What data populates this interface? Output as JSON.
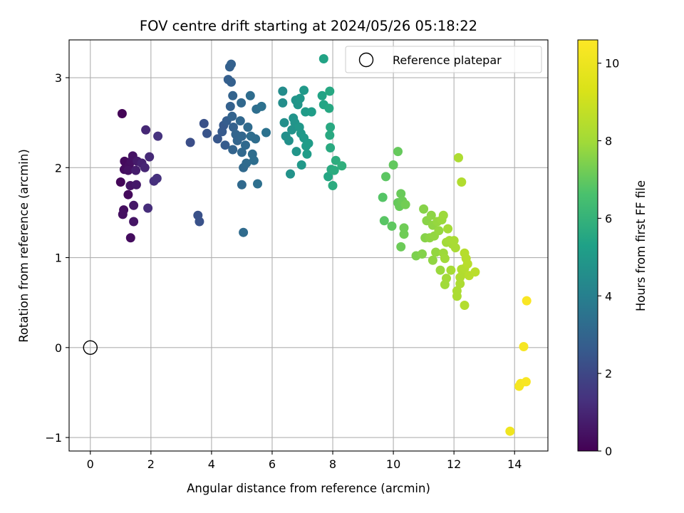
{
  "chart_data": {
    "type": "scatter",
    "title": "FOV centre drift starting at 2024/05/26 05:18:22",
    "xlabel": "Angular distance from reference (arcmin)",
    "ylabel": "Rotation from reference (arcmin)",
    "xlim": [
      -0.7,
      15.1
    ],
    "ylim": [
      -1.15,
      3.42
    ],
    "xticks": [
      0,
      2,
      4,
      6,
      8,
      10,
      12,
      14
    ],
    "yticks": [
      -1,
      0,
      1,
      2,
      3
    ],
    "grid": true,
    "colormap": "viridis",
    "colorbar": {
      "label": "Hours from first FF file",
      "range": [
        0,
        10.6
      ],
      "ticks": [
        0,
        2,
        4,
        6,
        8,
        10
      ]
    },
    "legend": {
      "position": "top-right",
      "entries": [
        "Reference platepar"
      ]
    },
    "reference_point": {
      "x": 0,
      "y": 0
    },
    "points": [
      {
        "x": 1.05,
        "y": 2.6,
        "c": 0.1
      },
      {
        "x": 1.0,
        "y": 1.84,
        "c": 0.15
      },
      {
        "x": 1.13,
        "y": 2.07,
        "c": 0.25
      },
      {
        "x": 1.12,
        "y": 1.98,
        "c": 0.3
      },
      {
        "x": 1.28,
        "y": 2.02,
        "c": 0.35
      },
      {
        "x": 1.35,
        "y": 2.07,
        "c": 0.4
      },
      {
        "x": 1.25,
        "y": 1.97,
        "c": 0.45
      },
      {
        "x": 1.4,
        "y": 2.13,
        "c": 0.5
      },
      {
        "x": 1.32,
        "y": 1.8,
        "c": 0.55
      },
      {
        "x": 1.25,
        "y": 1.7,
        "c": 0.25
      },
      {
        "x": 1.1,
        "y": 1.53,
        "c": 0.35
      },
      {
        "x": 1.07,
        "y": 1.48,
        "c": 0.4
      },
      {
        "x": 1.43,
        "y": 1.58,
        "c": 0.6
      },
      {
        "x": 1.43,
        "y": 1.4,
        "c": 0.55
      },
      {
        "x": 1.33,
        "y": 1.22,
        "c": 0.3
      },
      {
        "x": 1.52,
        "y": 1.81,
        "c": 0.65
      },
      {
        "x": 1.55,
        "y": 2.07,
        "c": 0.7
      },
      {
        "x": 1.5,
        "y": 1.97,
        "c": 0.75
      },
      {
        "x": 1.7,
        "y": 2.05,
        "c": 0.9
      },
      {
        "x": 1.8,
        "y": 2.0,
        "c": 1.0
      },
      {
        "x": 1.83,
        "y": 2.42,
        "c": 1.05
      },
      {
        "x": 1.95,
        "y": 2.12,
        "c": 1.1
      },
      {
        "x": 1.9,
        "y": 1.55,
        "c": 1.2
      },
      {
        "x": 2.1,
        "y": 1.85,
        "c": 1.25
      },
      {
        "x": 2.2,
        "y": 1.88,
        "c": 1.3
      },
      {
        "x": 2.23,
        "y": 2.35,
        "c": 1.35
      },
      {
        "x": 3.3,
        "y": 2.28,
        "c": 2.2
      },
      {
        "x": 3.55,
        "y": 1.47,
        "c": 2.3
      },
      {
        "x": 3.6,
        "y": 1.4,
        "c": 2.35
      },
      {
        "x": 3.75,
        "y": 2.49,
        "c": 2.3
      },
      {
        "x": 3.85,
        "y": 2.38,
        "c": 2.4
      },
      {
        "x": 4.2,
        "y": 2.32,
        "c": 2.5
      },
      {
        "x": 4.35,
        "y": 2.4,
        "c": 2.6
      },
      {
        "x": 4.4,
        "y": 2.47,
        "c": 2.55
      },
      {
        "x": 4.45,
        "y": 2.25,
        "c": 2.65
      },
      {
        "x": 4.5,
        "y": 2.52,
        "c": 2.7
      },
      {
        "x": 4.55,
        "y": 2.98,
        "c": 2.75
      },
      {
        "x": 4.6,
        "y": 3.12,
        "c": 2.8
      },
      {
        "x": 4.65,
        "y": 3.15,
        "c": 2.85
      },
      {
        "x": 4.65,
        "y": 2.95,
        "c": 2.8
      },
      {
        "x": 4.62,
        "y": 2.68,
        "c": 2.85
      },
      {
        "x": 4.7,
        "y": 2.8,
        "c": 2.9
      },
      {
        "x": 4.68,
        "y": 2.57,
        "c": 2.9
      },
      {
        "x": 4.7,
        "y": 2.2,
        "c": 2.95
      },
      {
        "x": 4.72,
        "y": 2.45,
        "c": 2.85
      },
      {
        "x": 4.8,
        "y": 2.37,
        "c": 3.0
      },
      {
        "x": 4.85,
        "y": 2.3,
        "c": 3.0
      },
      {
        "x": 4.95,
        "y": 2.52,
        "c": 3.05
      },
      {
        "x": 4.98,
        "y": 2.72,
        "c": 3.1
      },
      {
        "x": 5.0,
        "y": 2.35,
        "c": 3.05
      },
      {
        "x": 5.0,
        "y": 2.17,
        "c": 3.1
      },
      {
        "x": 5.0,
        "y": 1.81,
        "c": 3.15
      },
      {
        "x": 5.05,
        "y": 2.0,
        "c": 3.15
      },
      {
        "x": 5.05,
        "y": 1.28,
        "c": 3.2
      },
      {
        "x": 5.15,
        "y": 2.05,
        "c": 3.2
      },
      {
        "x": 5.12,
        "y": 2.25,
        "c": 3.15
      },
      {
        "x": 5.2,
        "y": 2.45,
        "c": 3.2
      },
      {
        "x": 5.28,
        "y": 2.8,
        "c": 3.25
      },
      {
        "x": 5.3,
        "y": 2.35,
        "c": 3.3
      },
      {
        "x": 5.35,
        "y": 2.15,
        "c": 3.3
      },
      {
        "x": 5.4,
        "y": 2.08,
        "c": 3.35
      },
      {
        "x": 5.45,
        "y": 2.32,
        "c": 3.3
      },
      {
        "x": 5.48,
        "y": 2.65,
        "c": 3.35
      },
      {
        "x": 5.52,
        "y": 1.82,
        "c": 3.4
      },
      {
        "x": 5.65,
        "y": 2.68,
        "c": 3.45
      },
      {
        "x": 5.8,
        "y": 2.39,
        "c": 3.5
      },
      {
        "x": 6.35,
        "y": 2.85,
        "c": 4.5
      },
      {
        "x": 6.35,
        "y": 2.72,
        "c": 4.55
      },
      {
        "x": 6.4,
        "y": 2.5,
        "c": 4.6
      },
      {
        "x": 6.45,
        "y": 2.35,
        "c": 4.6
      },
      {
        "x": 6.55,
        "y": 2.3,
        "c": 4.65
      },
      {
        "x": 6.6,
        "y": 1.93,
        "c": 4.7
      },
      {
        "x": 6.65,
        "y": 2.42,
        "c": 4.7
      },
      {
        "x": 6.7,
        "y": 2.55,
        "c": 4.75
      },
      {
        "x": 6.75,
        "y": 2.5,
        "c": 4.8
      },
      {
        "x": 6.78,
        "y": 2.75,
        "c": 4.8
      },
      {
        "x": 6.8,
        "y": 2.18,
        "c": 4.85
      },
      {
        "x": 6.85,
        "y": 2.7,
        "c": 4.85
      },
      {
        "x": 6.9,
        "y": 2.45,
        "c": 4.9
      },
      {
        "x": 6.92,
        "y": 2.77,
        "c": 4.9
      },
      {
        "x": 6.95,
        "y": 2.38,
        "c": 4.95
      },
      {
        "x": 6.97,
        "y": 2.03,
        "c": 4.95
      },
      {
        "x": 7.05,
        "y": 2.86,
        "c": 5.0
      },
      {
        "x": 7.05,
        "y": 2.33,
        "c": 5.0
      },
      {
        "x": 7.1,
        "y": 2.62,
        "c": 5.05
      },
      {
        "x": 7.12,
        "y": 2.24,
        "c": 5.05
      },
      {
        "x": 7.15,
        "y": 2.15,
        "c": 5.1
      },
      {
        "x": 7.2,
        "y": 2.27,
        "c": 5.1
      },
      {
        "x": 7.3,
        "y": 2.62,
        "c": 5.15
      },
      {
        "x": 7.7,
        "y": 3.21,
        "c": 5.4
      },
      {
        "x": 7.65,
        "y": 2.8,
        "c": 5.4
      },
      {
        "x": 7.7,
        "y": 2.7,
        "c": 5.45
      },
      {
        "x": 7.85,
        "y": 1.9,
        "c": 5.5
      },
      {
        "x": 7.9,
        "y": 2.85,
        "c": 5.55
      },
      {
        "x": 7.88,
        "y": 2.66,
        "c": 5.55
      },
      {
        "x": 7.92,
        "y": 2.45,
        "c": 5.6
      },
      {
        "x": 7.9,
        "y": 2.36,
        "c": 5.6
      },
      {
        "x": 7.92,
        "y": 2.22,
        "c": 5.65
      },
      {
        "x": 7.95,
        "y": 1.98,
        "c": 5.65
      },
      {
        "x": 8.0,
        "y": 1.8,
        "c": 5.7
      },
      {
        "x": 8.05,
        "y": 1.97,
        "c": 5.7
      },
      {
        "x": 8.1,
        "y": 2.08,
        "c": 5.75
      },
      {
        "x": 8.3,
        "y": 2.02,
        "c": 5.85
      },
      {
        "x": 9.65,
        "y": 1.67,
        "c": 6.8
      },
      {
        "x": 9.7,
        "y": 1.41,
        "c": 6.85
      },
      {
        "x": 9.75,
        "y": 1.9,
        "c": 6.9
      },
      {
        "x": 9.95,
        "y": 1.35,
        "c": 6.95
      },
      {
        "x": 10.0,
        "y": 2.03,
        "c": 7.0
      },
      {
        "x": 10.15,
        "y": 2.18,
        "c": 7.05
      },
      {
        "x": 10.15,
        "y": 1.61,
        "c": 7.05
      },
      {
        "x": 10.2,
        "y": 1.57,
        "c": 7.1
      },
      {
        "x": 10.25,
        "y": 1.71,
        "c": 7.1
      },
      {
        "x": 10.3,
        "y": 1.63,
        "c": 7.15
      },
      {
        "x": 10.25,
        "y": 1.12,
        "c": 7.15
      },
      {
        "x": 10.35,
        "y": 1.33,
        "c": 7.2
      },
      {
        "x": 10.35,
        "y": 1.26,
        "c": 7.2
      },
      {
        "x": 10.4,
        "y": 1.59,
        "c": 7.25
      },
      {
        "x": 10.75,
        "y": 1.02,
        "c": 7.4
      },
      {
        "x": 10.95,
        "y": 1.04,
        "c": 7.5
      },
      {
        "x": 11.0,
        "y": 1.54,
        "c": 7.55
      },
      {
        "x": 11.05,
        "y": 1.22,
        "c": 7.55
      },
      {
        "x": 11.1,
        "y": 1.41,
        "c": 7.6
      },
      {
        "x": 11.2,
        "y": 1.22,
        "c": 7.65
      },
      {
        "x": 11.25,
        "y": 1.47,
        "c": 7.65
      },
      {
        "x": 11.3,
        "y": 1.36,
        "c": 7.7
      },
      {
        "x": 11.3,
        "y": 0.97,
        "c": 7.7
      },
      {
        "x": 11.35,
        "y": 1.24,
        "c": 7.75
      },
      {
        "x": 11.4,
        "y": 1.06,
        "c": 7.75
      },
      {
        "x": 11.45,
        "y": 1.4,
        "c": 7.8
      },
      {
        "x": 11.5,
        "y": 1.3,
        "c": 7.8
      },
      {
        "x": 11.55,
        "y": 0.86,
        "c": 7.85
      },
      {
        "x": 11.6,
        "y": 1.42,
        "c": 7.85
      },
      {
        "x": 11.65,
        "y": 1.47,
        "c": 7.9
      },
      {
        "x": 11.65,
        "y": 1.05,
        "c": 7.9
      },
      {
        "x": 11.7,
        "y": 0.99,
        "c": 7.95
      },
      {
        "x": 11.7,
        "y": 0.7,
        "c": 7.95
      },
      {
        "x": 11.75,
        "y": 0.77,
        "c": 8.0
      },
      {
        "x": 11.75,
        "y": 1.17,
        "c": 8.0
      },
      {
        "x": 11.8,
        "y": 1.32,
        "c": 8.05
      },
      {
        "x": 11.85,
        "y": 1.19,
        "c": 8.05
      },
      {
        "x": 11.9,
        "y": 0.86,
        "c": 8.1
      },
      {
        "x": 11.95,
        "y": 1.15,
        "c": 8.1
      },
      {
        "x": 12.0,
        "y": 1.19,
        "c": 8.15
      },
      {
        "x": 12.05,
        "y": 1.11,
        "c": 8.15
      },
      {
        "x": 12.1,
        "y": 0.57,
        "c": 8.2
      },
      {
        "x": 12.1,
        "y": 0.63,
        "c": 8.2
      },
      {
        "x": 12.15,
        "y": 2.11,
        "c": 8.25
      },
      {
        "x": 12.2,
        "y": 0.71,
        "c": 8.25
      },
      {
        "x": 12.2,
        "y": 0.78,
        "c": 8.3
      },
      {
        "x": 12.25,
        "y": 0.87,
        "c": 8.3
      },
      {
        "x": 12.25,
        "y": 1.84,
        "c": 8.35
      },
      {
        "x": 12.3,
        "y": 0.82,
        "c": 8.35
      },
      {
        "x": 12.35,
        "y": 0.88,
        "c": 8.4
      },
      {
        "x": 12.35,
        "y": 0.47,
        "c": 8.4
      },
      {
        "x": 12.35,
        "y": 1.05,
        "c": 8.45
      },
      {
        "x": 12.4,
        "y": 0.99,
        "c": 8.45
      },
      {
        "x": 12.45,
        "y": 0.93,
        "c": 8.5
      },
      {
        "x": 12.5,
        "y": 0.8,
        "c": 8.5
      },
      {
        "x": 12.7,
        "y": 0.84,
        "c": 8.55
      },
      {
        "x": 13.85,
        "y": -0.93,
        "c": 10.1
      },
      {
        "x": 14.15,
        "y": -0.43,
        "c": 10.3
      },
      {
        "x": 14.2,
        "y": -0.4,
        "c": 10.3
      },
      {
        "x": 14.3,
        "y": 0.01,
        "c": 10.35
      },
      {
        "x": 14.38,
        "y": -0.38,
        "c": 10.4
      },
      {
        "x": 14.4,
        "y": 0.52,
        "c": 10.45
      }
    ]
  }
}
